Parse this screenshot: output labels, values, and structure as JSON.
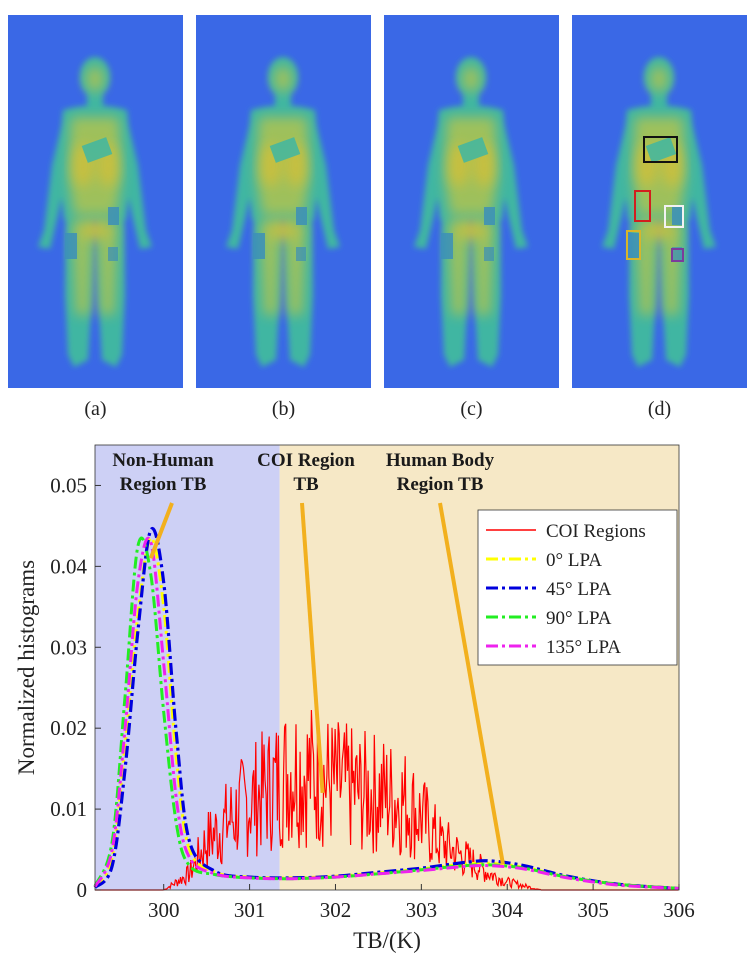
{
  "panels": [
    {
      "label": "(a)"
    },
    {
      "label": "(b)"
    },
    {
      "label": "(c)"
    },
    {
      "label": "(d)"
    }
  ],
  "colors": {
    "thermal_bg": "#3a68e6",
    "body_outer": "#3fb6a2",
    "body_inner": "#a9c254",
    "body_hot": "#d3bf38",
    "non_human_region": "#cdd0f5",
    "human_region": "#f6e8c6",
    "arrow": "#f2b01e"
  },
  "roi_boxes": [
    {
      "color": "#111111"
    },
    {
      "color": "#d21e1e"
    },
    {
      "color": "#f2f2f2"
    },
    {
      "color": "#d8b52a"
    },
    {
      "color": "#7b3b9c"
    }
  ],
  "chart_data": {
    "type": "line",
    "xlabel": "TB/(K)",
    "ylabel": "Normalized histograms",
    "xlim": [
      299.2,
      306
    ],
    "ylim": [
      0,
      0.055
    ],
    "xticks": [
      300,
      301,
      302,
      303,
      304,
      305,
      306
    ],
    "yticks": [
      0,
      0.01,
      0.02,
      0.03,
      0.04,
      0.05
    ],
    "ytick_labels": [
      "0",
      "0.01",
      "0.02",
      "0.03",
      "0.04",
      "0.05"
    ],
    "shaded_regions": [
      {
        "x": [
          299.2,
          301.35
        ],
        "color": "#cdd0f5"
      },
      {
        "x": [
          301.35,
          306
        ],
        "color": "#f6e8c6"
      }
    ],
    "annotations": [
      {
        "text_lines": [
          "Non-Human",
          "Region TB"
        ],
        "target": [
          299.85,
          0.041
        ]
      },
      {
        "text_lines": [
          "COI Region",
          "TB"
        ],
        "target": [
          301.85,
          0.012
        ]
      },
      {
        "text_lines": [
          "Human Body",
          "Region TB"
        ],
        "target": [
          303.95,
          0.0032
        ]
      }
    ],
    "legend_position": "top-right",
    "series": [
      {
        "name": "COI Regions",
        "color": "#ff0000",
        "style": "solid",
        "x": [
          299.2,
          300.0,
          300.3,
          300.5,
          300.8,
          301.0,
          301.3,
          301.5,
          301.8,
          302.0,
          302.3,
          302.5,
          302.8,
          303.0,
          303.2,
          303.5,
          303.8,
          304.0,
          304.2,
          304.4,
          306.0
        ],
        "y": [
          0,
          0,
          0.002,
          0.006,
          0.009,
          0.011,
          0.013,
          0.015,
          0.014,
          0.013,
          0.012,
          0.012,
          0.011,
          0.009,
          0.006,
          0.004,
          0.002,
          0.001,
          0.0005,
          0,
          0
        ]
      },
      {
        "name": "0° LPA",
        "color": "#ffff00",
        "style": "dashdot",
        "x": [
          299.2,
          299.4,
          299.55,
          299.7,
          299.85,
          300.0,
          300.15,
          300.3,
          300.6,
          301.0,
          301.5,
          302.0,
          302.5,
          303.0,
          303.5,
          303.8,
          304.2,
          304.7,
          305.3,
          306.0
        ],
        "y": [
          0.0003,
          0.004,
          0.018,
          0.034,
          0.0435,
          0.035,
          0.016,
          0.005,
          0.0022,
          0.0016,
          0.0015,
          0.0017,
          0.0021,
          0.0026,
          0.0032,
          0.0033,
          0.0028,
          0.0016,
          0.0007,
          0.0002
        ]
      },
      {
        "name": "45° LPA",
        "color": "#0000dd",
        "style": "dashdot",
        "x": [
          299.2,
          299.4,
          299.55,
          299.7,
          299.85,
          300.0,
          300.15,
          300.3,
          300.6,
          301.0,
          301.5,
          302.0,
          302.5,
          303.0,
          303.5,
          303.8,
          304.2,
          304.7,
          305.3,
          306.0
        ],
        "y": [
          0.0003,
          0.003,
          0.015,
          0.032,
          0.0445,
          0.038,
          0.019,
          0.006,
          0.0023,
          0.0016,
          0.0015,
          0.0017,
          0.0022,
          0.0027,
          0.0034,
          0.0036,
          0.003,
          0.0017,
          0.0007,
          0.0002
        ]
      },
      {
        "name": "90° LPA",
        "color": "#22ee22",
        "style": "dashdot",
        "x": [
          299.2,
          299.4,
          299.55,
          299.7,
          299.85,
          300.0,
          300.15,
          300.3,
          300.6,
          301.0,
          301.5,
          302.0,
          302.5,
          303.0,
          303.5,
          303.8,
          304.2,
          304.7,
          305.3,
          306.0
        ],
        "y": [
          0.0005,
          0.006,
          0.024,
          0.0425,
          0.039,
          0.022,
          0.008,
          0.003,
          0.0019,
          0.0015,
          0.0014,
          0.0016,
          0.002,
          0.0025,
          0.003,
          0.0031,
          0.0027,
          0.0016,
          0.0007,
          0.0002
        ]
      },
      {
        "name": "135° LPA",
        "color": "#ee22ee",
        "style": "dashdot",
        "x": [
          299.2,
          299.4,
          299.55,
          299.7,
          299.85,
          300.0,
          300.15,
          300.3,
          300.6,
          301.0,
          301.5,
          302.0,
          302.5,
          303.0,
          303.5,
          303.8,
          304.2,
          304.7,
          305.3,
          306.0
        ],
        "y": [
          0.0004,
          0.005,
          0.02,
          0.038,
          0.043,
          0.028,
          0.011,
          0.004,
          0.002,
          0.0015,
          0.0014,
          0.0016,
          0.002,
          0.0024,
          0.0029,
          0.003,
          0.0026,
          0.0015,
          0.0006,
          0.0002
        ]
      }
    ]
  }
}
